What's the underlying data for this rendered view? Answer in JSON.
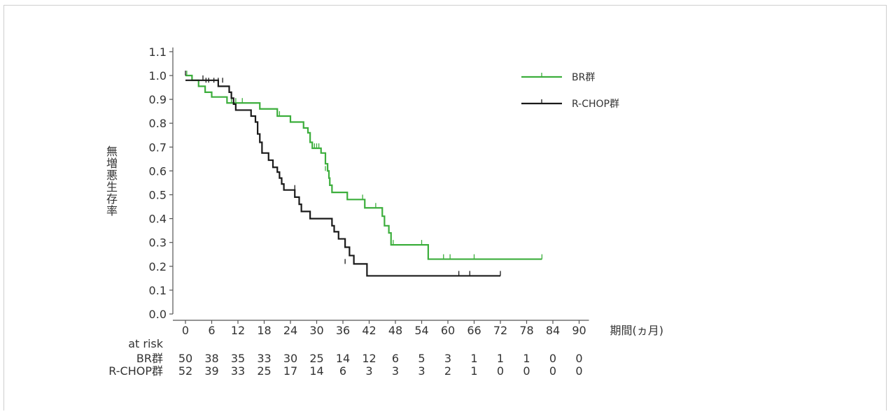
{
  "chart_data": {
    "type": "line",
    "subtype": "kaplan-meier-step",
    "ylabel": "無増悪生存率",
    "xlabel": "期間(ヵ月)",
    "xlim": [
      0,
      90
    ],
    "ylim": [
      0.0,
      1.1
    ],
    "xticks": [
      0,
      6,
      12,
      18,
      24,
      30,
      36,
      42,
      48,
      54,
      60,
      66,
      72,
      78,
      84,
      90
    ],
    "yticks": [
      "0.0",
      "0.1",
      "0.2",
      "0.3",
      "0.4",
      "0.5",
      "0.6",
      "0.7",
      "0.8",
      "0.9",
      "1.0",
      "1.1"
    ],
    "grid": false,
    "legend_position": "top-right",
    "series": [
      {
        "name": "BR群",
        "color": "#3cae3c",
        "steps": [
          [
            0,
            1.0
          ],
          [
            1.5,
            0.98
          ],
          [
            3,
            0.955
          ],
          [
            4.5,
            0.93
          ],
          [
            6,
            0.91
          ],
          [
            9.5,
            0.885
          ],
          [
            12.5,
            0.885
          ],
          [
            17,
            0.86
          ],
          [
            21,
            0.83
          ],
          [
            24,
            0.805
          ],
          [
            27,
            0.78
          ],
          [
            28,
            0.76
          ],
          [
            28.5,
            0.72
          ],
          [
            29,
            0.695
          ],
          [
            31,
            0.675
          ],
          [
            32,
            0.63
          ],
          [
            32.5,
            0.6
          ],
          [
            32.8,
            0.57
          ],
          [
            33,
            0.54
          ],
          [
            33.5,
            0.51
          ],
          [
            37,
            0.48
          ],
          [
            41,
            0.445
          ],
          [
            45,
            0.41
          ],
          [
            45.5,
            0.37
          ],
          [
            46.5,
            0.34
          ],
          [
            47,
            0.29
          ],
          [
            55.5,
            0.23
          ],
          [
            81.5,
            0.23
          ]
        ],
        "censors": [
          [
            0.3,
            1.0
          ],
          [
            10.5,
            0.885
          ],
          [
            11.5,
            0.885
          ],
          [
            13,
            0.885
          ],
          [
            21.5,
            0.83
          ],
          [
            29.5,
            0.695
          ],
          [
            30,
            0.695
          ],
          [
            30.5,
            0.695
          ],
          [
            32,
            0.6
          ],
          [
            40.5,
            0.48
          ],
          [
            43.5,
            0.445
          ],
          [
            47.5,
            0.29
          ],
          [
            54,
            0.29
          ],
          [
            59,
            0.23
          ],
          [
            60.5,
            0.23
          ],
          [
            66,
            0.23
          ],
          [
            81.5,
            0.23
          ]
        ]
      },
      {
        "name": "R-CHOP群",
        "color": "#1a1a1a",
        "steps": [
          [
            0,
            0.98
          ],
          [
            7.5,
            0.955
          ],
          [
            9.8,
            0.955
          ],
          [
            10,
            0.93
          ],
          [
            10.5,
            0.905
          ],
          [
            11,
            0.88
          ],
          [
            11.5,
            0.855
          ],
          [
            15,
            0.83
          ],
          [
            16,
            0.805
          ],
          [
            16.5,
            0.755
          ],
          [
            17,
            0.72
          ],
          [
            17.5,
            0.675
          ],
          [
            19,
            0.645
          ],
          [
            20,
            0.615
          ],
          [
            21,
            0.595
          ],
          [
            21.5,
            0.57
          ],
          [
            22,
            0.545
          ],
          [
            22.5,
            0.52
          ],
          [
            25,
            0.49
          ],
          [
            26,
            0.46
          ],
          [
            26.5,
            0.43
          ],
          [
            28.5,
            0.4
          ],
          [
            33.5,
            0.37
          ],
          [
            34,
            0.345
          ],
          [
            35,
            0.315
          ],
          [
            36.5,
            0.28
          ],
          [
            37.5,
            0.245
          ],
          [
            38.5,
            0.21
          ],
          [
            41.5,
            0.16
          ],
          [
            72,
            0.16
          ]
        ],
        "censors": [
          [
            0,
            1.0
          ],
          [
            4,
            0.98
          ],
          [
            4.7,
            0.97
          ],
          [
            5.3,
            0.97
          ],
          [
            6.5,
            0.97
          ],
          [
            7.5,
            0.97
          ],
          [
            8.5,
            0.97
          ],
          [
            25,
            0.52
          ],
          [
            36.5,
            0.21
          ],
          [
            62.5,
            0.16
          ],
          [
            65,
            0.16
          ],
          [
            72,
            0.16
          ]
        ]
      }
    ],
    "at_risk": {
      "title": "at risk",
      "times": [
        0,
        6,
        12,
        18,
        24,
        30,
        36,
        42,
        48,
        54,
        60,
        66,
        72,
        78,
        84,
        90
      ],
      "rows": [
        {
          "label": "BR群",
          "values": [
            "50",
            "38",
            "35",
            "33",
            "30",
            "25",
            "14",
            "12",
            "6",
            "5",
            "3",
            "1",
            "1",
            "1",
            "0",
            "0"
          ]
        },
        {
          "label": "R-CHOP群",
          "values": [
            "52",
            "39",
            "33",
            "25",
            "17",
            "14",
            "6",
            "3",
            "3",
            "3",
            "2",
            "1",
            "0",
            "0",
            "0",
            "0"
          ]
        }
      ]
    }
  }
}
